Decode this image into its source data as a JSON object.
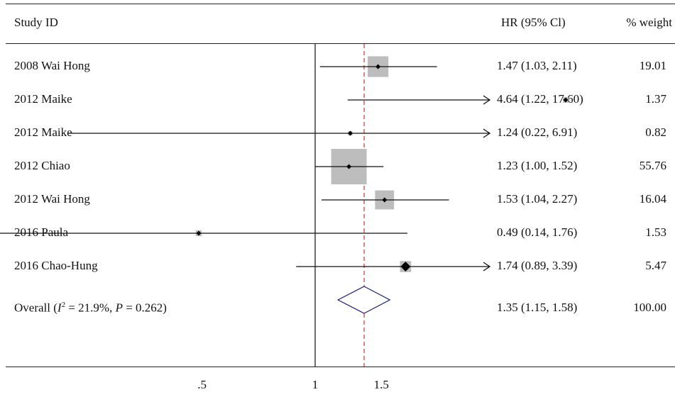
{
  "header": {
    "study_label": "Study ID",
    "hr_label": "HR (95% Cl)",
    "weight_label": "% weight"
  },
  "studies": [
    {
      "label": "2008 Wai Hong",
      "hr": 1.47,
      "lo": 1.03,
      "hi": 2.11,
      "hr_text": "1.47 (1.03, 2.11)",
      "weight_text": "19.01"
    },
    {
      "label": "2012 Maike",
      "hr": 4.64,
      "lo": 1.22,
      "hi": 17.6,
      "hr_text": "4.64 (1.22, 17.60)",
      "weight_text": "1.37"
    },
    {
      "label": "2012 Maike",
      "hr": 1.24,
      "lo": 0.22,
      "hi": 6.91,
      "hr_text": "1.24 (0.22, 6.91)",
      "weight_text": "0.82"
    },
    {
      "label": "2012 Chiao",
      "hr": 1.23,
      "lo": 1.0,
      "hi": 1.52,
      "hr_text": "1.23 (1.00, 1.52)",
      "weight_text": "55.76"
    },
    {
      "label": "2012 Wai Hong",
      "hr": 1.53,
      "lo": 1.04,
      "hi": 2.27,
      "hr_text": "1.53 (1.04, 2.27)",
      "weight_text": "16.04"
    },
    {
      "label": "2016 Paula",
      "hr": 0.49,
      "lo": 0.14,
      "hi": 1.76,
      "hr_text": "0.49 (0.14, 1.76)",
      "weight_text": "1.53"
    },
    {
      "label": "2016 Chao-Hung",
      "hr": 1.74,
      "lo": 0.89,
      "hi": 3.39,
      "hr_text": "1.74 (0.89, 3.39)",
      "weight_text": "5.47"
    }
  ],
  "overall": {
    "label_prefix": "Overall (",
    "label_i": "I",
    "label_sup": "2",
    "label_mid": " = 21.9%, ",
    "label_p": "P",
    "label_end": " = 0.262)",
    "hr": 1.35,
    "lo": 1.15,
    "hi": 1.58,
    "hr_text": "1.35 (1.15, 1.58)",
    "weight_text": "100.00"
  },
  "chart_data": {
    "type": "forest",
    "scale": "log",
    "x_ticks": [
      ".5",
      "1",
      "1.5"
    ],
    "x_tick_values": [
      0.5,
      1,
      1.5
    ],
    "reference_line": 1,
    "overall_line": 1.35,
    "colors": {
      "box": "#bdbdbd",
      "overall_diamond": "#1a1a7a",
      "overall_line": "#d03030"
    },
    "weights": [
      19.01,
      1.37,
      0.82,
      55.76,
      16.04,
      1.53,
      5.47
    ]
  }
}
